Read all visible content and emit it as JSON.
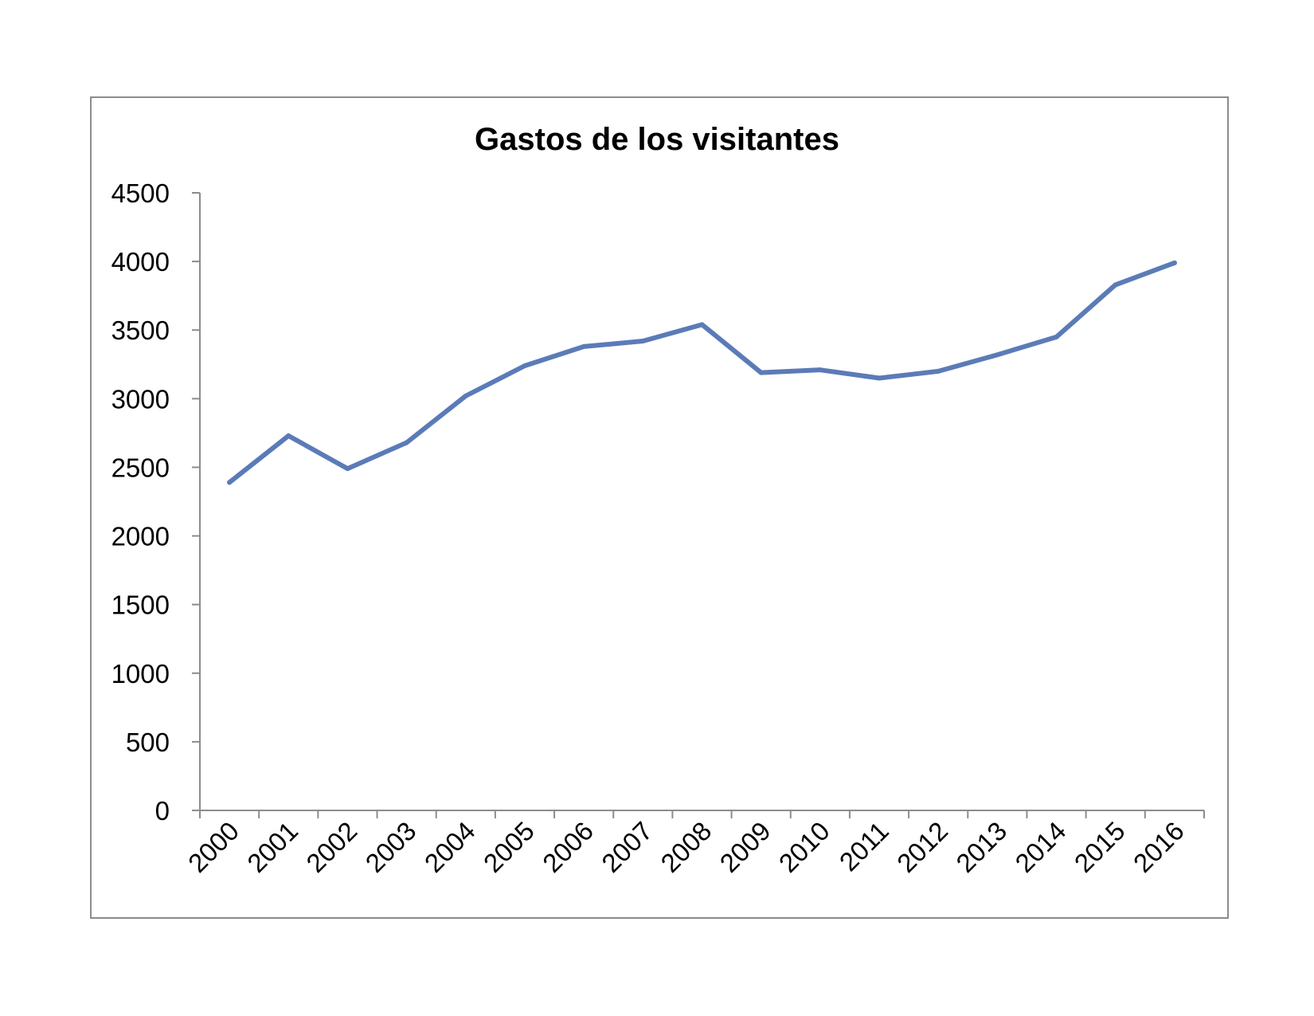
{
  "chart_data": {
    "type": "line",
    "title": "Gastos de los visitantes",
    "xlabel": "",
    "ylabel": "",
    "categories": [
      "2000",
      "2001",
      "2002",
      "2003",
      "2004",
      "2005",
      "2006",
      "2007",
      "2008",
      "2009",
      "2010",
      "2011",
      "2012",
      "2013",
      "2014",
      "2015",
      "2016"
    ],
    "series": [
      {
        "values": [
          2390,
          2730,
          2490,
          2680,
          3020,
          3240,
          3380,
          3420,
          3540,
          3190,
          3210,
          3150,
          3200,
          3320,
          3450,
          3830,
          3990
        ]
      }
    ],
    "ylim": [
      0,
      4500
    ],
    "yticks": [
      0,
      500,
      1000,
      1500,
      2000,
      2500,
      3000,
      3500,
      4000,
      4500
    ],
    "grid": false,
    "legend": "none",
    "colors": {
      "line": "#5b7bb8",
      "axis": "#8c8c8c",
      "frame": "#8c8c8c",
      "text": "#000000"
    }
  }
}
